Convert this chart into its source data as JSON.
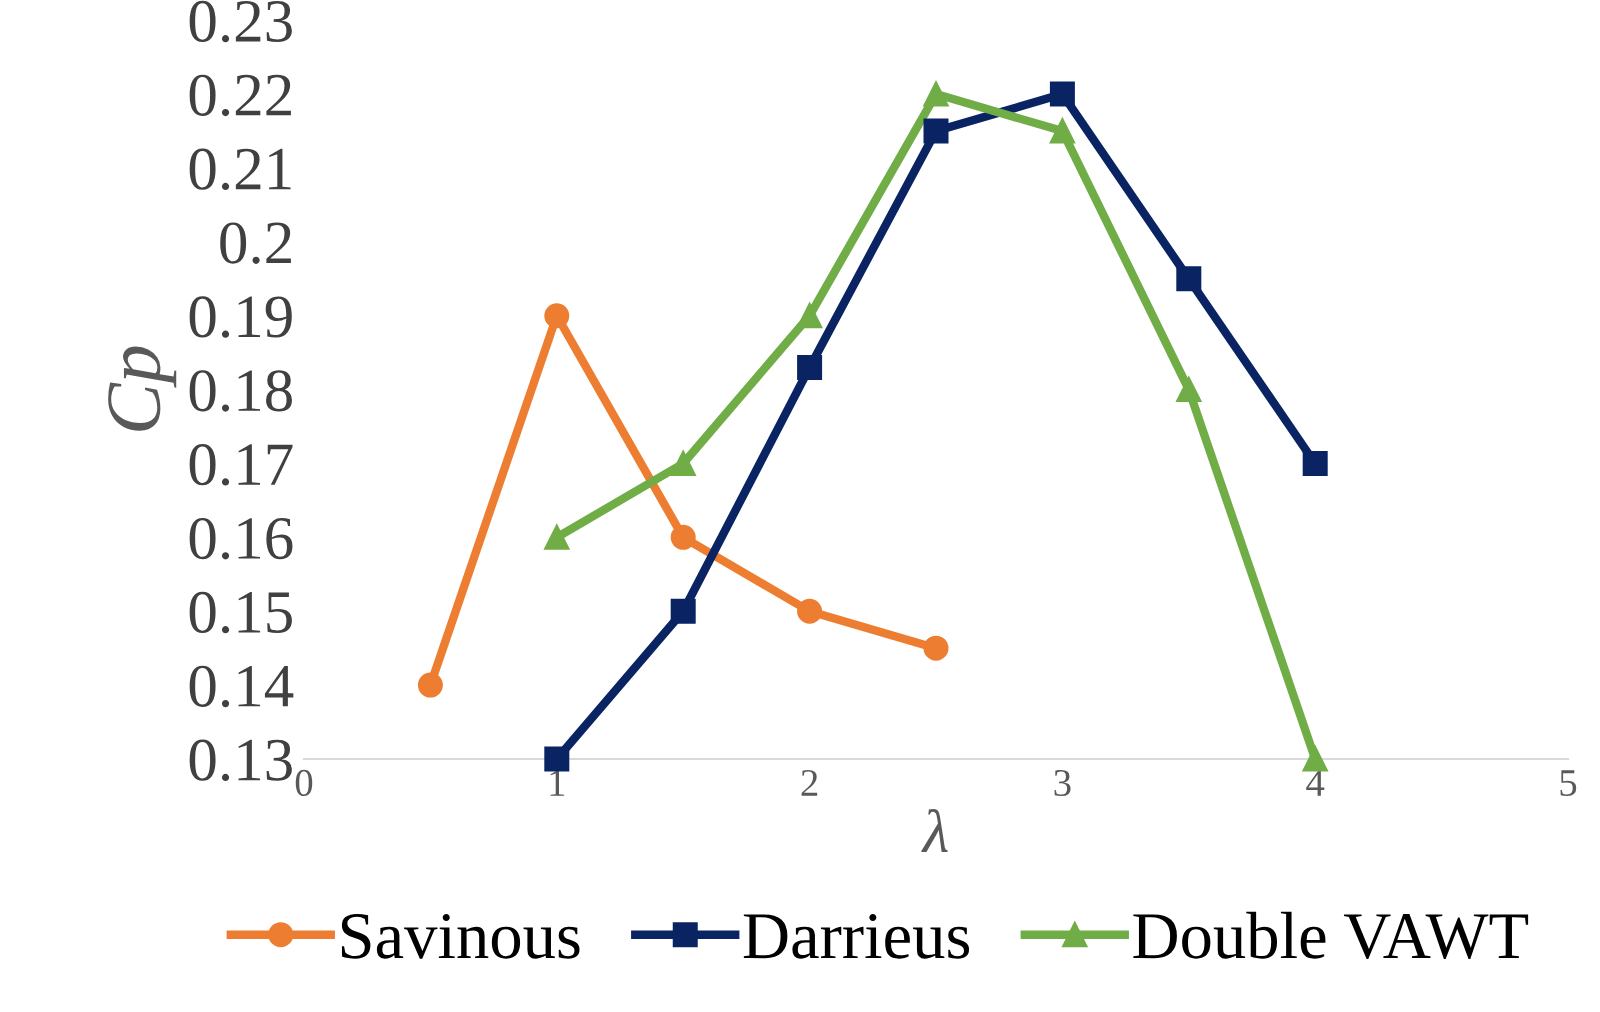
{
  "chart_data": {
    "type": "line",
    "xlabel": "λ",
    "ylabel": "Cp",
    "xlim": [
      0,
      5
    ],
    "xticks": [
      0,
      1,
      2,
      3,
      4,
      5
    ],
    "ylim": [
      0.13,
      0.23
    ],
    "yticks": [
      0.13,
      0.14,
      0.15,
      0.16,
      0.17,
      0.18,
      0.19,
      0.2,
      0.21,
      0.22,
      0.23
    ],
    "grid": false,
    "legend": "bottom",
    "line_style": "solid",
    "series": [
      {
        "name": "Savinous",
        "color": "#ed7d31",
        "marker": "circle",
        "x": [
          0.5,
          1,
          1.5,
          2,
          2.5
        ],
        "values": [
          0.14,
          0.19,
          0.16,
          0.15,
          0.145
        ]
      },
      {
        "name": "Darrieus",
        "color": "#0a2463",
        "marker": "square",
        "x": [
          1,
          1.5,
          2,
          2.5,
          3,
          3.5,
          4
        ],
        "values": [
          0.13,
          0.15,
          0.183,
          0.215,
          0.22,
          0.195,
          0.17
        ]
      },
      {
        "name": "Double VAWT",
        "color": "#70ad47",
        "marker": "triangle",
        "x": [
          1,
          1.5,
          2,
          2.5,
          3,
          3.5,
          4
        ],
        "values": [
          0.16,
          0.17,
          0.19,
          0.22,
          0.215,
          0.18,
          0.13
        ]
      }
    ]
  }
}
